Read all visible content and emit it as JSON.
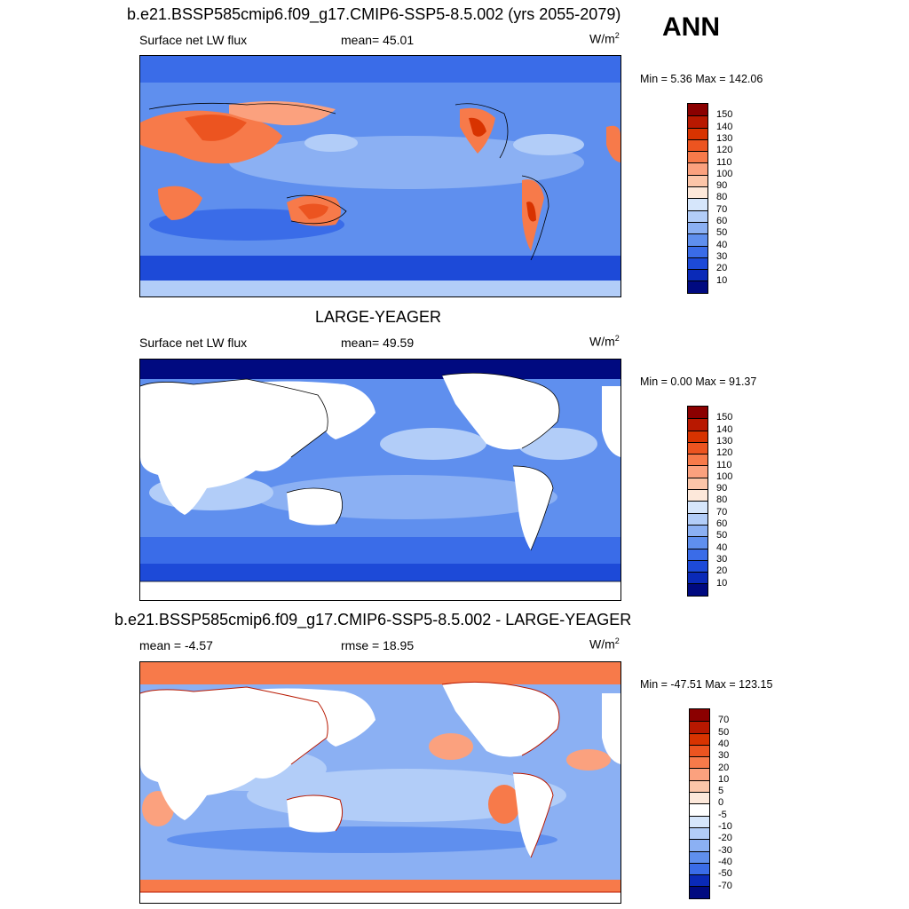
{
  "header": {
    "case_title": "b.e21.BSSP585cmip6.f09_g17.CMIP6-SSP5-8.5.002 (yrs 2055-2079)",
    "season": "ANN"
  },
  "panels": [
    {
      "id": "model",
      "title": "",
      "variable": "Surface net LW flux",
      "stat_label": "mean=  45.01",
      "units_base": "W/m",
      "units_exp": "2",
      "minmax": "Min =   5.36 Max = 142.06",
      "colorbar": {
        "labels": [
          "150",
          "140",
          "130",
          "120",
          "110",
          "100",
          "90",
          "80",
          "70",
          "60",
          "50",
          "40",
          "30",
          "20",
          "10"
        ],
        "colors": [
          "#8b0000",
          "#b81800",
          "#d83300",
          "#ec5420",
          "#f77a4a",
          "#fba17e",
          "#fcc5a8",
          "#fde8da",
          "#d6e6fb",
          "#b2cdf8",
          "#8bb0f3",
          "#5f8fee",
          "#3a6ce8",
          "#1d4ad8",
          "#0a2ab8",
          "#000a80"
        ]
      }
    },
    {
      "id": "obs",
      "title": "LARGE-YEAGER",
      "variable": "Surface net LW flux",
      "stat_label": "mean=  49.59",
      "units_base": "W/m",
      "units_exp": "2",
      "minmax": "Min =   0.00 Max =  91.37",
      "colorbar": {
        "labels": [
          "150",
          "140",
          "130",
          "120",
          "110",
          "100",
          "90",
          "80",
          "70",
          "60",
          "50",
          "40",
          "30",
          "20",
          "10"
        ],
        "colors": [
          "#8b0000",
          "#b81800",
          "#d83300",
          "#ec5420",
          "#f77a4a",
          "#fba17e",
          "#fcc5a8",
          "#fde8da",
          "#d6e6fb",
          "#b2cdf8",
          "#8bb0f3",
          "#5f8fee",
          "#3a6ce8",
          "#1d4ad8",
          "#0a2ab8",
          "#000a80"
        ]
      }
    },
    {
      "id": "diff",
      "title": "b.e21.BSSP585cmip6.f09_g17.CMIP6-SSP5-8.5.002 - LARGE-YEAGER",
      "variable": "mean =  -4.57",
      "stat_label": "rmse =  18.95",
      "units_base": "W/m",
      "units_exp": "2",
      "minmax": "Min = -47.51 Max = 123.15",
      "colorbar": {
        "labels": [
          "70",
          "50",
          "40",
          "30",
          "20",
          "10",
          "5",
          "0",
          "-5",
          "-10",
          "-20",
          "-30",
          "-40",
          "-50",
          "-70"
        ],
        "colors": [
          "#8b0000",
          "#b81800",
          "#d83300",
          "#ec5420",
          "#f77a4a",
          "#fba17e",
          "#fcc5a8",
          "#fde8da",
          "#ffffff",
          "#d6e6fb",
          "#b2cdf8",
          "#8bb0f3",
          "#5f8fee",
          "#3a6ce8",
          "#0a2ab8",
          "#000a80"
        ]
      }
    }
  ],
  "colors": {
    "ocean_mid": "#5f8fee",
    "ocean_light": "#b2cdf8",
    "ocean_dark": "#1d4ad8",
    "land_white": "#ffffff",
    "warm": "#f77a4a",
    "warm_light": "#fcc5a8"
  }
}
